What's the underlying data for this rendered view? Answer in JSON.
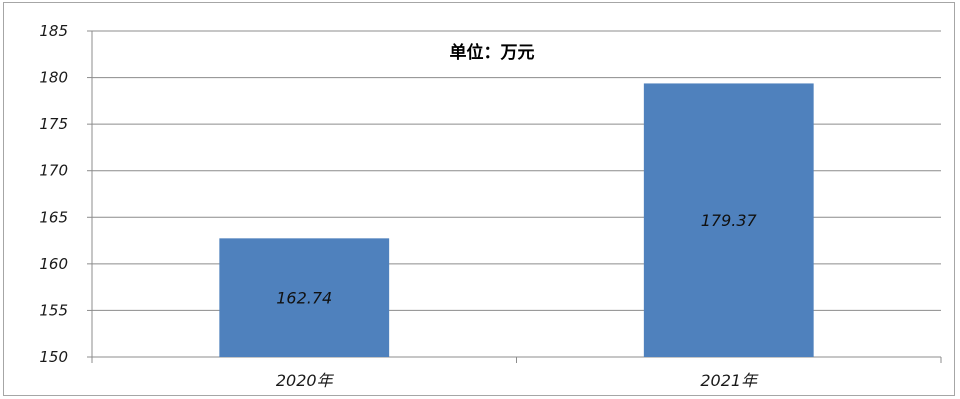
{
  "chart_data": {
    "type": "bar",
    "annotation": "单位：万元",
    "categories": [
      "2020年",
      "2021年"
    ],
    "values": [
      162.74,
      179.37
    ],
    "data_labels": [
      "162.74",
      "179.37"
    ],
    "ylim": [
      150,
      185
    ],
    "y_ticks": [
      "150",
      "155",
      "160",
      "165",
      "170",
      "175",
      "180",
      "185"
    ],
    "grid": true,
    "bar_color": "#4f81bd",
    "grid_color": "#8c8c8c",
    "legend": "none"
  }
}
